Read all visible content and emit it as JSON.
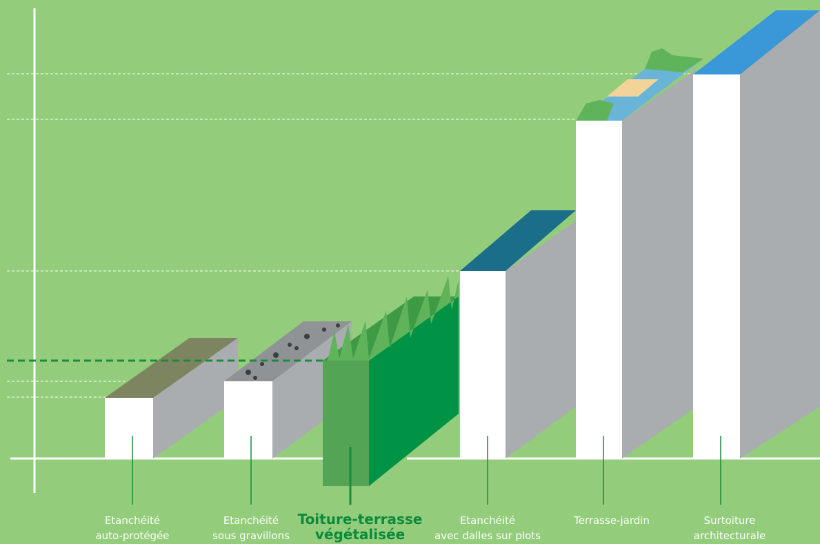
{
  "items": [
    {
      "lines": [
        "Etanchéité",
        "auto-protégée"
      ]
    },
    {
      "lines": [
        "Etanchéité",
        "sous gravillons"
      ]
    },
    {
      "lines": [
        "Toiture-terrasse",
        "végétalisée"
      ]
    },
    {
      "lines": [
        "Etanchéité",
        "avec dalles sur plots"
      ]
    },
    {
      "lines": [
        "Terrasse-jardin"
      ]
    },
    {
      "lines": [
        "Surtoiture",
        "architecturale"
      ]
    }
  ]
}
